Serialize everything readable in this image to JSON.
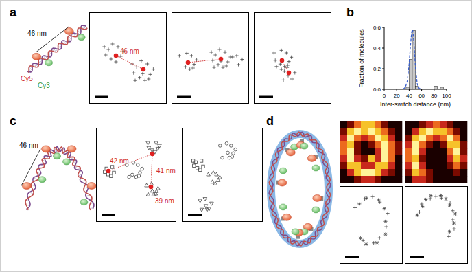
{
  "chart_data": {
    "type": "histogram",
    "x_label": "Inter-switch distance (nm)",
    "y_label": "Fraction of molecules",
    "bins": [
      0,
      5,
      10,
      15,
      20,
      25,
      30,
      35,
      40,
      45,
      50,
      55,
      60,
      65,
      70,
      75,
      80,
      85,
      90,
      95,
      100
    ],
    "values": [
      0,
      0,
      0,
      0,
      0,
      0,
      0,
      0.02,
      0.29,
      0.57,
      0.03,
      0,
      0,
      0,
      0,
      0,
      0.03,
      0,
      0.02,
      0
    ],
    "color": "#c8c8c8",
    "xlim": [
      0,
      100
    ],
    "xticks": [
      0,
      20,
      40,
      60,
      80,
      100
    ],
    "ylim": [
      0,
      0.6
    ],
    "yticks": [
      {
        "value": 0,
        "label": "0.0"
      },
      {
        "value": 0.2,
        "label": "0.2"
      },
      {
        "value": 0.4,
        "label": "0.4"
      },
      {
        "value": 0.6,
        "label": "0.6"
      }
    ],
    "fit": {
      "type": "line",
      "line_style": "dashed",
      "color": "#3a5fcd",
      "x": [
        30,
        34,
        37,
        40,
        42,
        44,
        45,
        46,
        48,
        50,
        53,
        56,
        60
      ],
      "values": [
        0,
        0.02,
        0.08,
        0.25,
        0.42,
        0.55,
        0.58,
        0.56,
        0.42,
        0.22,
        0.05,
        0.01,
        0
      ]
    }
  },
  "panels": {
    "a": {
      "label": "a",
      "diagram": {
        "distance": "46 nm",
        "acceptor": "Cy5",
        "donor": "Cy3"
      },
      "annotations": [
        "46 nm"
      ]
    },
    "b": {
      "label": "b"
    },
    "c": {
      "label": "c",
      "diagram": {
        "distance": "46 nm"
      },
      "annotations": [
        "42 nm",
        "41 nm",
        "39 nm"
      ]
    },
    "d": {
      "label": "d",
      "images": [
        [
          [
            0,
            1,
            3,
            4,
            4,
            3,
            1,
            0,
            0
          ],
          [
            1,
            4,
            5,
            4,
            5,
            4,
            3,
            1,
            0
          ],
          [
            2,
            5,
            3,
            2,
            3,
            5,
            4,
            2,
            0
          ],
          [
            3,
            4,
            1,
            0,
            1,
            3,
            5,
            3,
            1
          ],
          [
            3,
            5,
            1,
            0,
            0,
            2,
            5,
            3,
            1
          ],
          [
            2,
            5,
            2,
            1,
            4,
            2,
            5,
            3,
            0
          ],
          [
            1,
            4,
            4,
            2,
            2,
            4,
            4,
            2,
            0
          ],
          [
            0,
            2,
            4,
            5,
            5,
            4,
            2,
            1,
            0
          ],
          [
            0,
            0,
            1,
            2,
            2,
            1,
            0,
            0,
            0
          ]
        ],
        [
          [
            0,
            0,
            1,
            2,
            3,
            2,
            1,
            0,
            0
          ],
          [
            0,
            2,
            4,
            5,
            4,
            4,
            3,
            1,
            0
          ],
          [
            1,
            4,
            5,
            3,
            2,
            3,
            5,
            3,
            0
          ],
          [
            2,
            5,
            3,
            1,
            0,
            1,
            4,
            4,
            1
          ],
          [
            3,
            5,
            2,
            0,
            0,
            0,
            3,
            5,
            1
          ],
          [
            3,
            4,
            1,
            0,
            0,
            0,
            2,
            4,
            2
          ],
          [
            2,
            5,
            2,
            0,
            0,
            0,
            1,
            3,
            1
          ],
          [
            1,
            4,
            3,
            1,
            0,
            0,
            0,
            1,
            0
          ],
          [
            0,
            2,
            2,
            1,
            0,
            0,
            0,
            0,
            0
          ]
        ]
      ]
    }
  }
}
